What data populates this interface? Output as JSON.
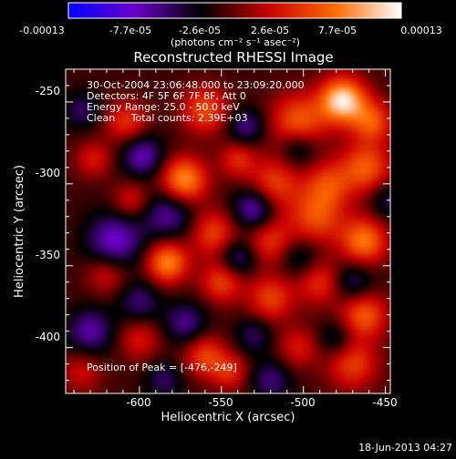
{
  "chart_data": {
    "type": "heatmap",
    "title": "Reconstructed RHESSI Image",
    "xlabel": "Heliocentric X (arcsec)",
    "ylabel": "Heliocentric Y (arcsec)",
    "xlim": [
      -645,
      -447
    ],
    "ylim": [
      -428,
      -230
    ],
    "x_ticks": [
      -600,
      -550,
      -500,
      -450
    ],
    "x_tick_labels": [
      "-600",
      "-550",
      "-500",
      "-450"
    ],
    "y_ticks": [
      -250,
      -300,
      -350,
      -400
    ],
    "y_tick_labels": [
      "-250",
      "-300",
      "-350",
      "-400"
    ],
    "grid": false,
    "colorbar": {
      "min": -0.00013,
      "max": 0.00013,
      "tick_values": [
        -0.00013,
        -7.7e-05,
        -2.6e-05,
        2.6e-05,
        7.7e-05,
        0.00013
      ],
      "tick_labels": [
        "-0.00013",
        "-7.7e-05",
        "-2.6e-05",
        "2.6e-05",
        "7.7e-05",
        "0.00013"
      ],
      "unit_label": "(photons cm⁻² s⁻¹ asec⁻²)",
      "colors": [
        "#0000ff",
        "#6a00c8",
        "#000000",
        "#c80000",
        "#ff6a00",
        "#ffffff"
      ]
    },
    "annotations": [
      "30-Oct-2004 23:06:48.000 to 23:09:20.000",
      "Detectors: 4F 5F 6F 7F 8F, Att 0",
      "Energy Range: 25.0 - 50.0 keV",
      "Clean     Total counts: 2.39E+03"
    ],
    "peak_label": "Position of Peak = [-476,-249]",
    "peak": {
      "x": -476,
      "y": -249
    },
    "blobs": [
      {
        "x": -476,
        "y": -249,
        "v": 1.0,
        "r": 10
      },
      {
        "x": -458,
        "y": -262,
        "v": 0.55,
        "r": 9
      },
      {
        "x": -503,
        "y": -262,
        "v": 0.6,
        "r": 12
      },
      {
        "x": -560,
        "y": -255,
        "v": 0.55,
        "r": 10
      },
      {
        "x": -608,
        "y": -262,
        "v": 0.45,
        "r": 9
      },
      {
        "x": -628,
        "y": -285,
        "v": 0.35,
        "r": 8
      },
      {
        "x": -462,
        "y": -290,
        "v": 0.6,
        "r": 11
      },
      {
        "x": -485,
        "y": -300,
        "v": 0.45,
        "r": 10
      },
      {
        "x": -518,
        "y": -300,
        "v": 0.5,
        "r": 11
      },
      {
        "x": -573,
        "y": -298,
        "v": 0.8,
        "r": 10
      },
      {
        "x": -540,
        "y": -285,
        "v": 0.4,
        "r": 8
      },
      {
        "x": -492,
        "y": -320,
        "v": 0.55,
        "r": 12
      },
      {
        "x": -520,
        "y": -335,
        "v": 0.45,
        "r": 10
      },
      {
        "x": -463,
        "y": -335,
        "v": 0.7,
        "r": 10
      },
      {
        "x": -555,
        "y": -330,
        "v": 0.5,
        "r": 10
      },
      {
        "x": -550,
        "y": -360,
        "v": 0.5,
        "r": 9
      },
      {
        "x": -583,
        "y": -348,
        "v": 0.75,
        "r": 9
      },
      {
        "x": -605,
        "y": -310,
        "v": 0.35,
        "r": 8
      },
      {
        "x": -620,
        "y": -355,
        "v": 0.35,
        "r": 9
      },
      {
        "x": -520,
        "y": -370,
        "v": 0.5,
        "r": 10
      },
      {
        "x": -490,
        "y": -360,
        "v": 0.45,
        "r": 10
      },
      {
        "x": -463,
        "y": -380,
        "v": 0.6,
        "r": 10
      },
      {
        "x": -470,
        "y": -410,
        "v": 0.5,
        "r": 11
      },
      {
        "x": -503,
        "y": -400,
        "v": 0.35,
        "r": 9
      },
      {
        "x": -560,
        "y": -405,
        "v": 0.5,
        "r": 9
      },
      {
        "x": -600,
        "y": -395,
        "v": 0.35,
        "r": 9
      },
      {
        "x": -635,
        "y": -415,
        "v": 0.3,
        "r": 9
      },
      {
        "x": -545,
        "y": -415,
        "v": 0.4,
        "r": 8
      },
      {
        "x": -598,
        "y": -283,
        "v": -0.5,
        "r": 9
      },
      {
        "x": -582,
        "y": -318,
        "v": -0.45,
        "r": 11
      },
      {
        "x": -615,
        "y": -335,
        "v": -0.55,
        "r": 12
      },
      {
        "x": -635,
        "y": -255,
        "v": -0.3,
        "r": 8
      },
      {
        "x": -630,
        "y": -390,
        "v": -0.45,
        "r": 10
      },
      {
        "x": -600,
        "y": -372,
        "v": -0.35,
        "r": 9
      },
      {
        "x": -572,
        "y": -385,
        "v": -0.4,
        "r": 9
      },
      {
        "x": -530,
        "y": -315,
        "v": -0.55,
        "r": 9
      },
      {
        "x": -503,
        "y": -278,
        "v": -0.35,
        "r": 8
      },
      {
        "x": -535,
        "y": -265,
        "v": -0.4,
        "r": 8
      },
      {
        "x": -540,
        "y": -345,
        "v": -0.4,
        "r": 8
      },
      {
        "x": -502,
        "y": -345,
        "v": -0.3,
        "r": 9
      },
      {
        "x": -470,
        "y": -360,
        "v": -0.35,
        "r": 9
      },
      {
        "x": -480,
        "y": -395,
        "v": -0.3,
        "r": 8
      },
      {
        "x": -520,
        "y": -420,
        "v": -0.35,
        "r": 9
      },
      {
        "x": -530,
        "y": -392,
        "v": -0.3,
        "r": 8
      },
      {
        "x": -448,
        "y": -310,
        "v": -0.3,
        "r": 8
      },
      {
        "x": -585,
        "y": -420,
        "v": -0.3,
        "r": 8
      }
    ]
  },
  "footer": {
    "date_stamp": "18-Jun-2013 04:27"
  }
}
